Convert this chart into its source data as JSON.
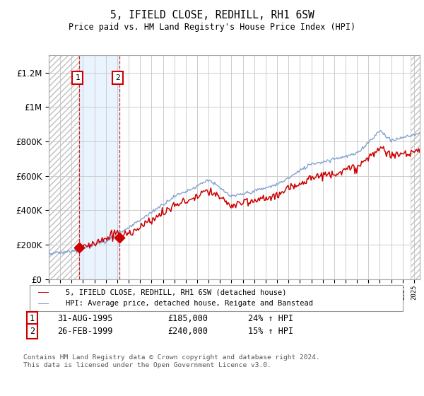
{
  "title": "5, IFIELD CLOSE, REDHILL, RH1 6SW",
  "subtitle": "Price paid vs. HM Land Registry's House Price Index (HPI)",
  "legend_line1": "5, IFIELD CLOSE, REDHILL, RH1 6SW (detached house)",
  "legend_line2": "HPI: Average price, detached house, Reigate and Banstead",
  "transaction1_date": "31-AUG-1995",
  "transaction1_price_str": "£185,000",
  "transaction1_hpi": "24% ↑ HPI",
  "transaction1_price": 185000,
  "transaction2_date": "26-FEB-1999",
  "transaction2_price_str": "£240,000",
  "transaction2_hpi": "15% ↑ HPI",
  "transaction2_price": 240000,
  "footer": "Contains HM Land Registry data © Crown copyright and database right 2024.\nThis data is licensed under the Open Government Licence v3.0.",
  "ylim": [
    0,
    1300000
  ],
  "yticks": [
    0,
    200000,
    400000,
    600000,
    800000,
    1000000,
    1200000
  ],
  "ytick_labels": [
    "£0",
    "£200K",
    "£400K",
    "£600K",
    "£800K",
    "£1M",
    "£1.2M"
  ],
  "bg_color": "#ffffff",
  "plot_bg": "#ffffff",
  "grid_color": "#cccccc",
  "red_line_color": "#cc0000",
  "blue_line_color": "#7799cc",
  "transaction1_year": 1995.67,
  "transaction2_year": 1999.17,
  "xmin": 1993.0,
  "xmax": 2025.5
}
